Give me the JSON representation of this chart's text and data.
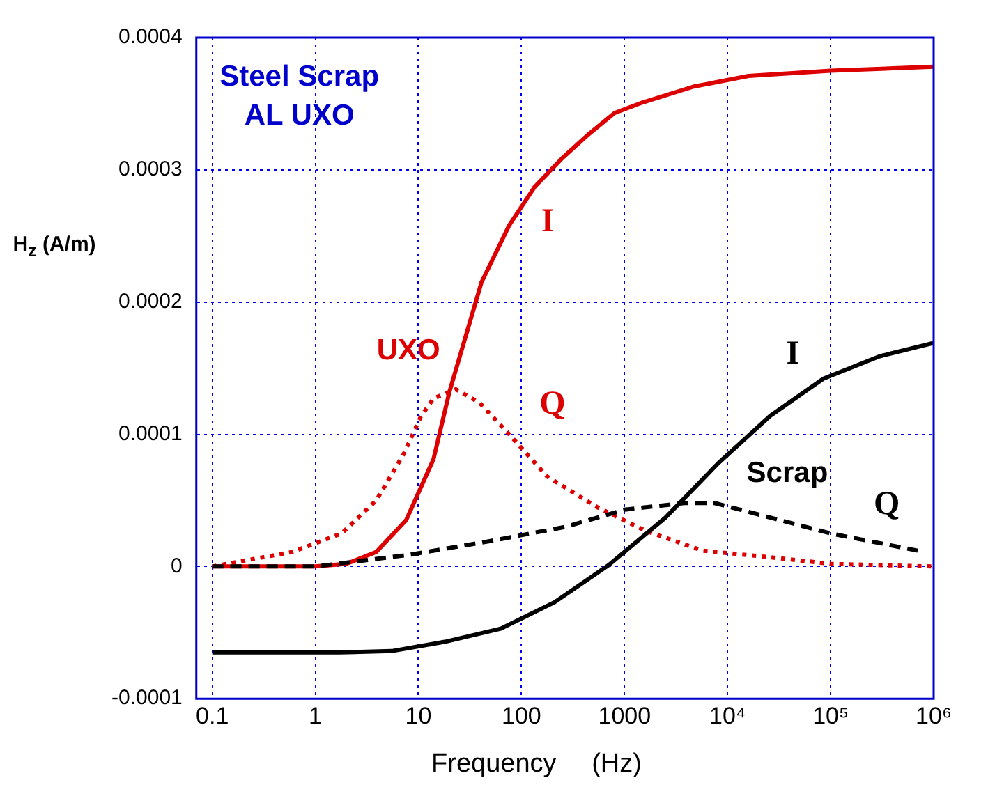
{
  "chart_data": {
    "type": "line",
    "xlabel": "Frequency (Hz)",
    "ylabel": "H$_{z}$ (A/m)",
    "log": "x",
    "grid": true,
    "marker": "none",
    "xlim": [
      0.07,
      1000000
    ],
    "xticks": [
      0.1,
      1,
      10,
      100,
      1000,
      {
        "value": 10000,
        "label": "10⁴"
      },
      {
        "value": 100000,
        "label": "10⁵"
      },
      {
        "value": 1000000,
        "label": "10⁶"
      }
    ],
    "ylim": [
      -0.0001,
      0.0004
    ],
    "yticks": [
      -0.0001,
      0,
      0.0001,
      0.0002,
      0.0003,
      0.0004
    ],
    "series": [
      {
        "name": "I",
        "color": "#dd0000",
        "line_style": "solid",
        "x": [
          0.1,
          1,
          2,
          3.9,
          7.6,
          14,
          20,
          41,
          76,
          134,
          250,
          450,
          800,
          1500,
          4700,
          16000,
          100000,
          1000000
        ],
        "values": [
          0,
          0,
          2e-06,
          1.1e-05,
          3.5e-05,
          8.1e-05,
          0.000132,
          0.000215,
          0.000258,
          0.000287,
          0.000309,
          0.000327,
          0.000343,
          0.000351,
          0.000363,
          0.000371,
          0.000375,
          0.000378
        ]
      },
      {
        "name": "Q",
        "color": "#dd0000",
        "line_style": "dotted",
        "x": [
          0.1,
          0.6,
          1.8,
          3.9,
          7.2,
          10.5,
          14,
          23,
          39,
          76,
          178,
          540,
          1600,
          5700,
          26000,
          100000,
          1000000
        ],
        "values": [
          0,
          1.1e-05,
          2.5e-05,
          5e-05,
          8.5e-05,
          0.000113,
          0.000127,
          0.000134,
          0.000124,
          0.0001,
          6.8e-05,
          4.5e-05,
          2.7e-05,
          1.2e-05,
          7e-06,
          2e-06,
          0
        ]
      },
      {
        "name": "I",
        "color": "#000000",
        "line_style": "solid",
        "x": [
          0.1,
          1.7,
          5.5,
          18,
          63,
          210,
          700,
          2500,
          8100,
          26000,
          85000,
          300000,
          1000000
        ],
        "values": [
          -6.5e-05,
          -6.5e-05,
          -6.4e-05,
          -5.7e-05,
          -4.7e-05,
          -2.7e-05,
          1e-06,
          3.7e-05,
          7.8e-05,
          0.000114,
          0.000142,
          0.000159,
          0.000169
        ]
      },
      {
        "name": "Q",
        "color": "#000000",
        "line_style": "dashed",
        "x": [
          0.1,
          1,
          8.4,
          48,
          270,
          1000,
          3800,
          7500,
          26000,
          100000,
          700000
        ],
        "values": [
          0,
          0,
          9e-06,
          1.9e-05,
          3e-05,
          4.3e-05,
          4.8e-05,
          4.8e-05,
          3.7e-05,
          2.5e-05,
          1.2e-05
        ]
      }
    ],
    "annotations": [
      "Steel Scrap",
      "AL UXO",
      "UXO",
      "Scrap"
    ]
  }
}
